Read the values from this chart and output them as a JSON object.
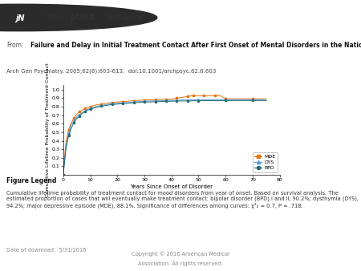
{
  "title_bold": "Failure and Delay in Initial Treatment Contact After First Onset of Mental Disorders in the National Comorbidity Survey Replication",
  "subtitle": "Arch Gen Psychiatry. 2005;62(6):603-613.  doi:10.1001/archpsyc.62.6.603",
  "xlabel": "Years Since Onset of Disorder",
  "ylabel": "Cumulative Lifetime Probability of Treatment Contact",
  "xlim": [
    0,
    80
  ],
  "ylim": [
    0.0,
    1.05
  ],
  "xticks": [
    0,
    10,
    20,
    30,
    40,
    50,
    60,
    70,
    80
  ],
  "yticks": [
    0.1,
    0.2,
    0.3,
    0.4,
    0.5,
    0.6,
    0.7,
    0.8,
    0.9,
    1.0
  ],
  "figure_legend_title": "Figure Legend",
  "figure_legend_text": "Cumulative lifetime probability of treatment contact for mood disorders from year of onset. Based on survival analysis. The\nestimated proportion of cases that will eventually make treatment contact: bipolar disorder (BPD) I and II, 90.2%; dysthymia (DYS),\n94.2%; major depressive episode (MDE), 88.1%. Significance of differences among curves: χ²₂ = 0.7, P = .718.",
  "date_text": "Date of download:  5/31/2016",
  "copyright_line1": "Copyright © 2016 American Medical",
  "copyright_line2": "Association. All rights reserved.",
  "series": {
    "MDE": {
      "color": "#e8720c",
      "marker": "s",
      "x": [
        0,
        1,
        2,
        3,
        4,
        5,
        6,
        7,
        8,
        9,
        10,
        12,
        14,
        16,
        18,
        20,
        22,
        24,
        26,
        28,
        30,
        32,
        34,
        36,
        38,
        40,
        42,
        44,
        46,
        47,
        48,
        50,
        52,
        54,
        56,
        58,
        60,
        65,
        70,
        75
      ],
      "y": [
        0.0,
        0.38,
        0.53,
        0.61,
        0.67,
        0.71,
        0.74,
        0.76,
        0.78,
        0.79,
        0.8,
        0.82,
        0.83,
        0.84,
        0.85,
        0.855,
        0.86,
        0.865,
        0.87,
        0.875,
        0.878,
        0.88,
        0.882,
        0.884,
        0.886,
        0.888,
        0.9,
        0.91,
        0.92,
        0.925,
        0.93,
        0.93,
        0.93,
        0.93,
        0.93,
        0.93,
        0.893,
        0.892,
        0.892,
        0.892
      ]
    },
    "DYS": {
      "color": "#5b9bd5",
      "marker": "^",
      "x": [
        0,
        1,
        2,
        3,
        4,
        5,
        6,
        7,
        8,
        9,
        10,
        12,
        14,
        16,
        18,
        20,
        22,
        24,
        26,
        28,
        30,
        32,
        34,
        36,
        38,
        40,
        42,
        44,
        46,
        48,
        50,
        55,
        60,
        65,
        70,
        75
      ],
      "y": [
        0.0,
        0.33,
        0.49,
        0.58,
        0.64,
        0.68,
        0.71,
        0.73,
        0.75,
        0.77,
        0.78,
        0.8,
        0.815,
        0.825,
        0.835,
        0.84,
        0.845,
        0.85,
        0.855,
        0.86,
        0.863,
        0.866,
        0.868,
        0.87,
        0.872,
        0.874,
        0.876,
        0.878,
        0.879,
        0.88,
        0.881,
        0.882,
        0.883,
        0.883,
        0.883,
        0.883
      ]
    },
    "BPD": {
      "color": "#1f6b75",
      "marker": "o",
      "x": [
        0,
        1,
        2,
        3,
        4,
        5,
        6,
        7,
        8,
        9,
        10,
        12,
        14,
        16,
        18,
        20,
        22,
        24,
        26,
        28,
        30,
        32,
        34,
        36,
        38,
        40,
        42,
        44,
        46,
        48,
        50,
        55,
        60,
        65,
        70,
        75
      ],
      "y": [
        0.0,
        0.3,
        0.46,
        0.55,
        0.61,
        0.66,
        0.69,
        0.72,
        0.74,
        0.76,
        0.77,
        0.79,
        0.805,
        0.815,
        0.825,
        0.83,
        0.835,
        0.84,
        0.845,
        0.85,
        0.853,
        0.856,
        0.858,
        0.86,
        0.862,
        0.864,
        0.866,
        0.867,
        0.868,
        0.869,
        0.87,
        0.871,
        0.872,
        0.872,
        0.872,
        0.872
      ]
    }
  },
  "header_bg": "#f0f0f0",
  "ref_bg": "#e8e8e8",
  "background_color": "#ffffff"
}
